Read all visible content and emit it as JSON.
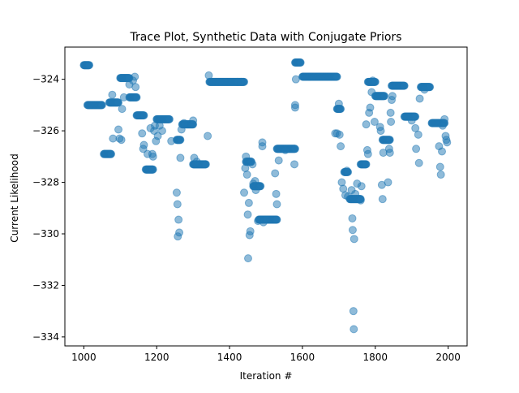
{
  "chart_data": {
    "type": "scatter",
    "title": "Trace Plot, Synthetic Data with Conjugate Priors",
    "xlabel": "Iteration #",
    "ylabel": "Current Likelihood",
    "xlim": [
      948,
      2052
    ],
    "ylim": [
      -334.35,
      -322.75
    ],
    "xticks": [
      1000,
      1200,
      1400,
      1600,
      1800,
      2000
    ],
    "yticks": [
      -334,
      -332,
      -330,
      -328,
      -326,
      -324
    ],
    "grid": false,
    "legend": "none",
    "point_color": "#1f77b4",
    "point_alpha": 0.5,
    "segments": [
      [
        1000,
        1015,
        -323.45
      ],
      [
        1010,
        1050,
        -325.0
      ],
      [
        1055,
        1075,
        -326.9
      ],
      [
        1070,
        1095,
        -324.9
      ],
      [
        1100,
        1125,
        -323.95
      ],
      [
        1125,
        1145,
        -324.7
      ],
      [
        1145,
        1165,
        -325.4
      ],
      [
        1170,
        1190,
        -327.5
      ],
      [
        1200,
        1235,
        -325.55
      ],
      [
        1255,
        1265,
        -326.35
      ],
      [
        1270,
        1300,
        -325.75
      ],
      [
        1300,
        1335,
        -327.3
      ],
      [
        1345,
        1440,
        -324.1
      ],
      [
        1445,
        1460,
        -327.2
      ],
      [
        1465,
        1485,
        -328.15
      ],
      [
        1480,
        1530,
        -329.45
      ],
      [
        1530,
        1580,
        -326.7
      ],
      [
        1580,
        1595,
        -323.35
      ],
      [
        1600,
        1695,
        -323.9
      ],
      [
        1695,
        1705,
        -325.15
      ],
      [
        1715,
        1725,
        -327.6
      ],
      [
        1730,
        1760,
        -328.65
      ],
      [
        1760,
        1775,
        -327.3
      ],
      [
        1780,
        1800,
        -324.1
      ],
      [
        1800,
        1825,
        -324.65
      ],
      [
        1820,
        1840,
        -326.35
      ],
      [
        1845,
        1880,
        -324.25
      ],
      [
        1880,
        1910,
        -325.45
      ],
      [
        1925,
        1950,
        -324.3
      ],
      [
        1955,
        1990,
        -325.7
      ]
    ],
    "scatter_points": [
      [
        1078,
        -324.6
      ],
      [
        1080,
        -326.3
      ],
      [
        1095,
        -325.95
      ],
      [
        1098,
        -326.3
      ],
      [
        1103,
        -326.35
      ],
      [
        1105,
        -325.15
      ],
      [
        1110,
        -324.7
      ],
      [
        1125,
        -324.2
      ],
      [
        1135,
        -324.05
      ],
      [
        1140,
        -323.9
      ],
      [
        1142,
        -324.3
      ],
      [
        1160,
        -326.1
      ],
      [
        1163,
        -326.7
      ],
      [
        1165,
        -326.55
      ],
      [
        1175,
        -326.9
      ],
      [
        1183,
        -325.9
      ],
      [
        1188,
        -326.9
      ],
      [
        1190,
        -327.0
      ],
      [
        1193,
        -326.0
      ],
      [
        1195,
        -325.8
      ],
      [
        1198,
        -326.4
      ],
      [
        1203,
        -326.2
      ],
      [
        1208,
        -325.8
      ],
      [
        1215,
        -326.0
      ],
      [
        1240,
        -326.4
      ],
      [
        1255,
        -328.4
      ],
      [
        1257,
        -328.85
      ],
      [
        1258,
        -330.1
      ],
      [
        1260,
        -329.45
      ],
      [
        1262,
        -329.95
      ],
      [
        1265,
        -327.05
      ],
      [
        1268,
        -325.95
      ],
      [
        1275,
        -325.7
      ],
      [
        1300,
        -325.6
      ],
      [
        1303,
        -327.05
      ],
      [
        1310,
        -327.2
      ],
      [
        1340,
        -326.2
      ],
      [
        1343,
        -323.85
      ],
      [
        1422,
        -324.1
      ],
      [
        1432,
        -324.1
      ],
      [
        1440,
        -328.4
      ],
      [
        1443,
        -327.45
      ],
      [
        1445,
        -327.0
      ],
      [
        1448,
        -327.7
      ],
      [
        1450,
        -329.25
      ],
      [
        1451,
        -330.95
      ],
      [
        1453,
        -328.8
      ],
      [
        1455,
        -330.05
      ],
      [
        1457,
        -329.9
      ],
      [
        1463,
        -327.3
      ],
      [
        1465,
        -328.05
      ],
      [
        1470,
        -327.95
      ],
      [
        1472,
        -328.3
      ],
      [
        1478,
        -329.5
      ],
      [
        1490,
        -326.45
      ],
      [
        1490,
        -326.6
      ],
      [
        1493,
        -329.55
      ],
      [
        1500,
        -329.45
      ],
      [
        1525,
        -327.65
      ],
      [
        1528,
        -328.45
      ],
      [
        1530,
        -328.85
      ],
      [
        1535,
        -327.15
      ],
      [
        1553,
        -326.75
      ],
      [
        1578,
        -327.3
      ],
      [
        1580,
        -325.0
      ],
      [
        1580,
        -325.1
      ],
      [
        1582,
        -324.0
      ],
      [
        1690,
        -326.1
      ],
      [
        1695,
        -326.1
      ],
      [
        1700,
        -324.95
      ],
      [
        1702,
        -326.15
      ],
      [
        1705,
        -326.6
      ],
      [
        1708,
        -328.0
      ],
      [
        1712,
        -328.25
      ],
      [
        1718,
        -328.5
      ],
      [
        1722,
        -327.55
      ],
      [
        1725,
        -328.55
      ],
      [
        1735,
        -328.3
      ],
      [
        1737,
        -329.4
      ],
      [
        1738,
        -329.85
      ],
      [
        1740,
        -333.0
      ],
      [
        1741,
        -333.7
      ],
      [
        1742,
        -330.2
      ],
      [
        1745,
        -328.45
      ],
      [
        1750,
        -328.05
      ],
      [
        1760,
        -328.7
      ],
      [
        1762,
        -328.15
      ],
      [
        1775,
        -325.75
      ],
      [
        1778,
        -326.75
      ],
      [
        1780,
        -326.9
      ],
      [
        1783,
        -325.3
      ],
      [
        1786,
        -325.1
      ],
      [
        1790,
        -324.5
      ],
      [
        1793,
        -324.05
      ],
      [
        1798,
        -325.65
      ],
      [
        1813,
        -325.85
      ],
      [
        1815,
        -326.0
      ],
      [
        1818,
        -328.1
      ],
      [
        1820,
        -328.65
      ],
      [
        1822,
        -326.85
      ],
      [
        1835,
        -328.0
      ],
      [
        1838,
        -326.7
      ],
      [
        1840,
        -326.85
      ],
      [
        1842,
        -325.3
      ],
      [
        1843,
        -325.65
      ],
      [
        1845,
        -324.8
      ],
      [
        1847,
        -324.65
      ],
      [
        1900,
        -325.6
      ],
      [
        1910,
        -325.9
      ],
      [
        1912,
        -326.7
      ],
      [
        1918,
        -326.15
      ],
      [
        1920,
        -327.25
      ],
      [
        1922,
        -324.75
      ],
      [
        1935,
        -324.4
      ],
      [
        1975,
        -326.6
      ],
      [
        1978,
        -327.4
      ],
      [
        1980,
        -327.7
      ],
      [
        1983,
        -326.8
      ],
      [
        1990,
        -325.55
      ],
      [
        1993,
        -326.2
      ],
      [
        1995,
        -326.35
      ],
      [
        1997,
        -326.45
      ],
      [
        1985,
        -325.8
      ]
    ]
  }
}
